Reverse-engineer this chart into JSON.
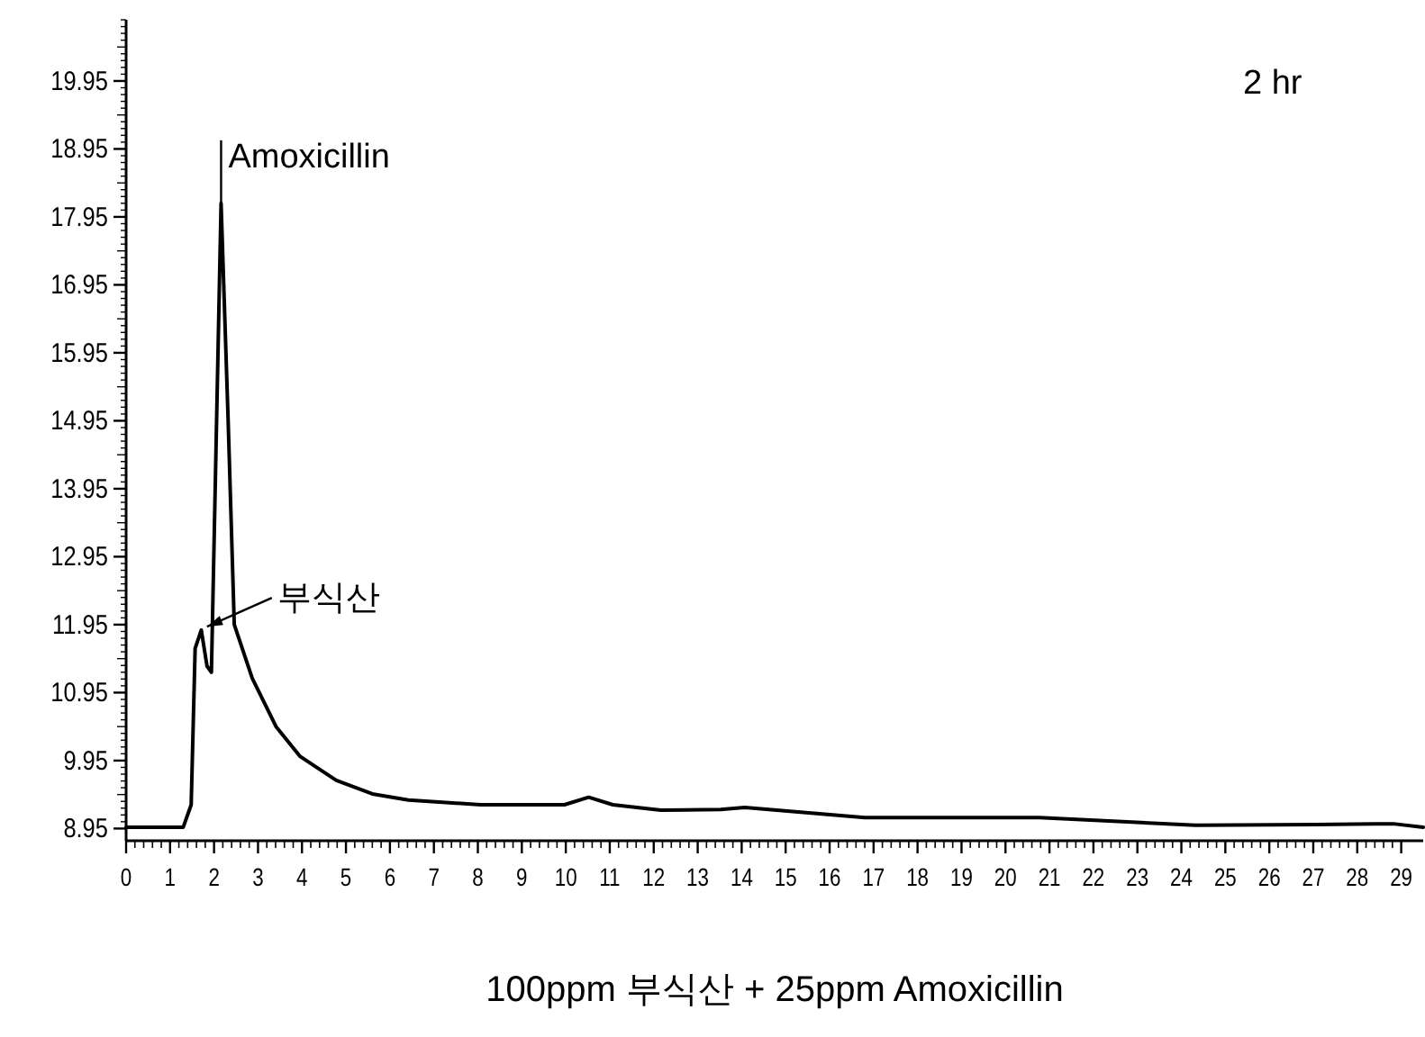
{
  "chart_data": {
    "type": "line",
    "xlabel": "100ppm 부식산 + 25ppm Amoxicillin",
    "xlim": [
      0,
      29.5
    ],
    "ylim": [
      8.77,
      20.85
    ],
    "xticks": [
      0,
      1,
      2,
      3,
      4,
      5,
      6,
      7,
      8,
      9,
      10,
      11,
      12,
      13,
      14,
      15,
      16,
      17,
      18,
      19,
      20,
      21,
      22,
      23,
      24,
      25,
      26,
      27,
      28,
      29
    ],
    "yticks": [
      8.95,
      9.95,
      10.95,
      11.95,
      12.95,
      13.95,
      14.95,
      15.95,
      16.95,
      17.95,
      18.95,
      19.95
    ],
    "grid": false,
    "marker": "none",
    "line_style": "solid",
    "series": [
      {
        "color": "#000000",
        "x": [
          0,
          1.3,
          1.48,
          1.57,
          1.71,
          1.84,
          1.94,
          2.16,
          2.32,
          2.46,
          2.87,
          3.41,
          3.96,
          4.78,
          5.6,
          6.42,
          8.06,
          9.97,
          10.52,
          11.07,
          12.16,
          13.52,
          14.07,
          16.8,
          20.77,
          24.32,
          27.05,
          28.82,
          29.5
        ],
        "values": [
          8.97,
          8.97,
          9.3,
          11.6,
          11.87,
          11.34,
          11.25,
          18.15,
          14.97,
          11.95,
          11.16,
          10.45,
          10.01,
          9.66,
          9.46,
          9.37,
          9.3,
          9.3,
          9.41,
          9.3,
          9.22,
          9.23,
          9.26,
          9.11,
          9.11,
          9,
          9.01,
          9.02,
          8.97
        ]
      }
    ],
    "annotations": [
      "2 hr",
      {
        "text": "Amoxicillin",
        "x": 2.16,
        "y": 18.15
      },
      {
        "text": "부식산",
        "x": 1.84,
        "y": 11.92
      }
    ]
  }
}
